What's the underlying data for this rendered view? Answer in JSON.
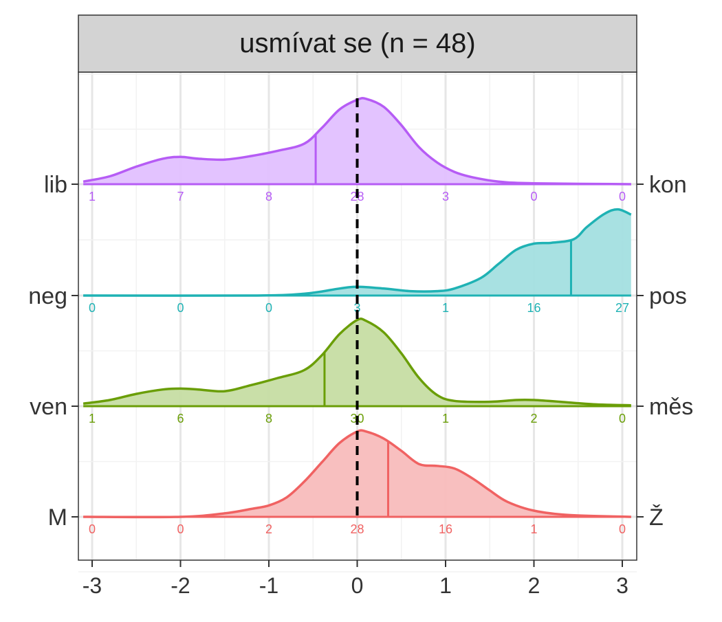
{
  "chart_data": {
    "type": "ridgeline-density",
    "title": "usmívat se (n = 48)",
    "xlim": [
      -3.1,
      3.1
    ],
    "x_ticks": [
      -3,
      -2,
      -1,
      0,
      1,
      2,
      3
    ],
    "x_tick_labels": [
      "-3",
      "-2",
      "-1",
      "0",
      "1",
      "2",
      "3"
    ],
    "reference_line_x": 0,
    "grid": true,
    "count_positions": [
      -3,
      -2,
      -1,
      0,
      1,
      2,
      3
    ],
    "rows": [
      {
        "left_label": "lib",
        "right_label": "kon",
        "color": "#B65CF5",
        "fill": "#E2C0FF",
        "median": -0.47,
        "counts": [
          "1",
          "7",
          "8",
          "28",
          "3",
          "0",
          "0"
        ],
        "density": [
          [
            -3.1,
            0.03
          ],
          [
            -2.8,
            0.09
          ],
          [
            -2.5,
            0.2
          ],
          [
            -2.2,
            0.29
          ],
          [
            -2.0,
            0.31
          ],
          [
            -1.8,
            0.29
          ],
          [
            -1.5,
            0.28
          ],
          [
            -1.2,
            0.32
          ],
          [
            -0.9,
            0.38
          ],
          [
            -0.6,
            0.46
          ],
          [
            -0.4,
            0.64
          ],
          [
            -0.2,
            0.85
          ],
          [
            0.0,
            0.96
          ],
          [
            0.1,
            0.97
          ],
          [
            0.3,
            0.88
          ],
          [
            0.5,
            0.67
          ],
          [
            0.7,
            0.42
          ],
          [
            0.9,
            0.25
          ],
          [
            1.1,
            0.14
          ],
          [
            1.3,
            0.08
          ],
          [
            1.6,
            0.03
          ],
          [
            2.0,
            0.01
          ],
          [
            3.1,
            0.0
          ]
        ]
      },
      {
        "left_label": "neg",
        "right_label": "pos",
        "color": "#1FB2B4",
        "fill": "#A3DFE0",
        "median": 2.42,
        "counts": [
          "0",
          "0",
          "0",
          "3",
          "1",
          "16",
          "27"
        ],
        "density": [
          [
            -3.1,
            0.0
          ],
          [
            -1.2,
            0.0
          ],
          [
            -0.6,
            0.02
          ],
          [
            -0.2,
            0.08
          ],
          [
            0.0,
            0.1
          ],
          [
            0.3,
            0.08
          ],
          [
            0.6,
            0.05
          ],
          [
            0.9,
            0.05
          ],
          [
            1.1,
            0.08
          ],
          [
            1.4,
            0.2
          ],
          [
            1.6,
            0.36
          ],
          [
            1.8,
            0.52
          ],
          [
            2.0,
            0.59
          ],
          [
            2.2,
            0.6
          ],
          [
            2.45,
            0.64
          ],
          [
            2.6,
            0.78
          ],
          [
            2.8,
            0.93
          ],
          [
            2.95,
            0.98
          ],
          [
            3.1,
            0.92
          ]
        ]
      },
      {
        "left_label": "ven",
        "right_label": "měs",
        "color": "#6A9E07",
        "fill": "#C6DDA3",
        "median": -0.37,
        "counts": [
          "1",
          "6",
          "8",
          "30",
          "1",
          "2",
          "0"
        ],
        "density": [
          [
            -3.1,
            0.03
          ],
          [
            -2.8,
            0.07
          ],
          [
            -2.5,
            0.14
          ],
          [
            -2.2,
            0.19
          ],
          [
            -2.0,
            0.2
          ],
          [
            -1.8,
            0.19
          ],
          [
            -1.5,
            0.17
          ],
          [
            -1.2,
            0.24
          ],
          [
            -0.9,
            0.32
          ],
          [
            -0.6,
            0.41
          ],
          [
            -0.4,
            0.58
          ],
          [
            -0.2,
            0.82
          ],
          [
            0.0,
            0.98
          ],
          [
            0.1,
            0.97
          ],
          [
            0.3,
            0.84
          ],
          [
            0.5,
            0.6
          ],
          [
            0.7,
            0.32
          ],
          [
            0.9,
            0.13
          ],
          [
            1.1,
            0.06
          ],
          [
            1.5,
            0.05
          ],
          [
            1.8,
            0.07
          ],
          [
            2.0,
            0.07
          ],
          [
            2.3,
            0.05
          ],
          [
            2.7,
            0.02
          ],
          [
            3.1,
            0.01
          ]
        ]
      },
      {
        "left_label": "M",
        "right_label": "Ž",
        "color": "#F06262",
        "fill": "#F8BCBC",
        "median": 0.35,
        "counts": [
          "0",
          "0",
          "2",
          "28",
          "16",
          "1",
          "0"
        ],
        "density": [
          [
            -3.1,
            0.0
          ],
          [
            -2.0,
            0.0
          ],
          [
            -1.5,
            0.04
          ],
          [
            -1.2,
            0.09
          ],
          [
            -1.0,
            0.13
          ],
          [
            -0.8,
            0.22
          ],
          [
            -0.6,
            0.4
          ],
          [
            -0.4,
            0.62
          ],
          [
            -0.2,
            0.84
          ],
          [
            0.0,
            0.97
          ],
          [
            0.1,
            0.97
          ],
          [
            0.3,
            0.89
          ],
          [
            0.5,
            0.75
          ],
          [
            0.7,
            0.6
          ],
          [
            0.9,
            0.58
          ],
          [
            1.1,
            0.55
          ],
          [
            1.3,
            0.44
          ],
          [
            1.5,
            0.3
          ],
          [
            1.7,
            0.17
          ],
          [
            2.0,
            0.07
          ],
          [
            2.4,
            0.02
          ],
          [
            3.1,
            0.0
          ]
        ]
      }
    ]
  }
}
